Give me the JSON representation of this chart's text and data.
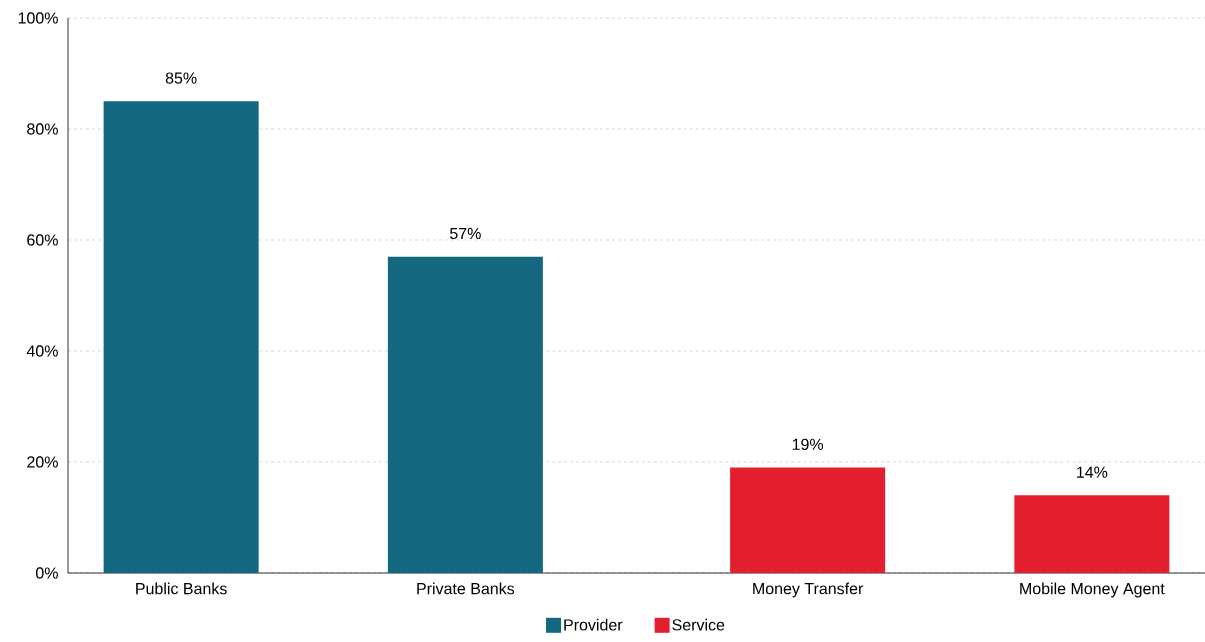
{
  "chart_data": {
    "type": "bar",
    "categories": [
      "Public Banks",
      "Private Banks",
      "Money Transfer",
      "Mobile Money Agent"
    ],
    "series": [
      {
        "name": "Provider",
        "color": "#136880",
        "values": [
          85,
          57,
          null,
          null
        ],
        "value_labels": [
          "85%",
          "57%",
          null,
          null
        ]
      },
      {
        "name": "Service",
        "color": "#e31f2f",
        "values": [
          null,
          null,
          19,
          14
        ],
        "value_labels": [
          null,
          null,
          "19%",
          "14%"
        ]
      }
    ],
    "ylim": [
      0,
      100
    ],
    "yticks": [
      {
        "value": 0,
        "label": "0%"
      },
      {
        "value": 20,
        "label": "20%"
      },
      {
        "value": 40,
        "label": "40%"
      },
      {
        "value": 60,
        "label": "60%"
      },
      {
        "value": 80,
        "label": "80%"
      },
      {
        "value": 100,
        "label": "100%"
      }
    ],
    "grid": "y",
    "legend": "bottom"
  }
}
